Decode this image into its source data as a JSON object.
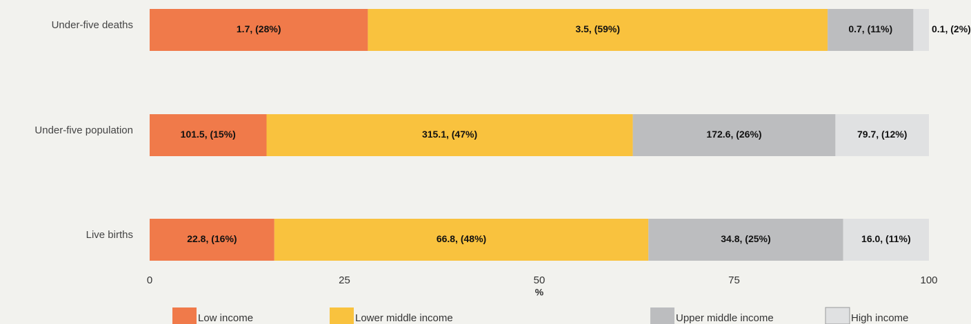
{
  "chart_data": {
    "type": "stacked-bar-horizontal",
    "categories": [
      "Under-five deaths",
      "Under-five population",
      "Live births"
    ],
    "series": [
      {
        "name": "Low income",
        "color": "#f07a4a",
        "values": [
          28,
          15,
          16
        ],
        "value_labels": [
          "1.7,  (28%)",
          "101.5, (15%)",
          "22.8, (16%)"
        ]
      },
      {
        "name": "Lower middle income",
        "color": "#f9c23e",
        "values": [
          59,
          47,
          48
        ],
        "value_labels": [
          "3.5,  (59%)",
          "315.1,  (47%)",
          "66.8,  (48%)"
        ]
      },
      {
        "name": "Upper middle income",
        "color": "#bcbdbf",
        "values": [
          11,
          26,
          25
        ],
        "value_labels": [
          "0.7, (11%)",
          "172.6, (26%)",
          "34.8, (25%)"
        ]
      },
      {
        "name": "High income",
        "color": "#e0e1e2",
        "values": [
          2,
          12,
          11
        ],
        "value_labels": [
          "0.1, (2%)",
          "79.7, (12%)",
          "16.0,  (11%)"
        ]
      }
    ],
    "xlabel": "%",
    "xlim": [
      0,
      100
    ],
    "xticks": [
      0,
      25,
      50,
      75,
      100
    ]
  }
}
